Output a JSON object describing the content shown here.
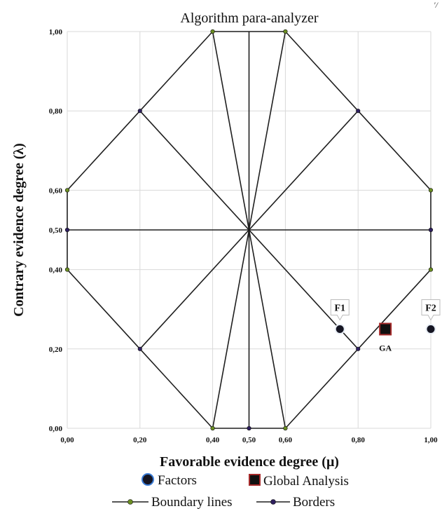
{
  "corner_text": "′/",
  "chart_data": {
    "type": "scatter",
    "title": "Algorithm para-analyzer",
    "xlabel": "Favorable evidence degree (μ)",
    "ylabel": "Contrary evidence degree (λ)",
    "xlim": [
      0,
      1
    ],
    "ylim": [
      0,
      1
    ],
    "grid": true,
    "x_ticks": [
      {
        "value": 0.0,
        "label": "0,00"
      },
      {
        "value": 0.2,
        "label": "0,20"
      },
      {
        "value": 0.4,
        "label": "0,40"
      },
      {
        "value": 0.5,
        "label": "0,50"
      },
      {
        "value": 0.6,
        "label": "0,60"
      },
      {
        "value": 0.8,
        "label": "0,80"
      },
      {
        "value": 1.0,
        "label": "1,00"
      }
    ],
    "y_ticks": [
      {
        "value": 0.0,
        "label": "0,00"
      },
      {
        "value": 0.2,
        "label": "0,20"
      },
      {
        "value": 0.4,
        "label": "0,40"
      },
      {
        "value": 0.5,
        "label": "0,50"
      },
      {
        "value": 0.6,
        "label": "0,60"
      },
      {
        "value": 0.8,
        "label": "0,80"
      },
      {
        "value": 1.0,
        "label": "1,00"
      }
    ],
    "series": [
      {
        "name": "Boundary lines",
        "color": "#6b8e23",
        "segments": [
          [
            [
              0.4,
              1.0
            ],
            [
              0.6,
              1.0
            ]
          ],
          [
            [
              0.0,
              0.6
            ],
            [
              0.0,
              0.4
            ]
          ],
          [
            [
              1.0,
              0.6
            ],
            [
              1.0,
              0.4
            ]
          ],
          [
            [
              0.4,
              0.0
            ],
            [
              0.6,
              0.0
            ]
          ],
          [
            [
              0.4,
              1.0
            ],
            [
              0.5,
              0.5
            ]
          ],
          [
            [
              0.6,
              1.0
            ],
            [
              0.5,
              0.5
            ]
          ],
          [
            [
              0.4,
              0.0
            ],
            [
              0.5,
              0.5
            ]
          ],
          [
            [
              0.6,
              0.0
            ],
            [
              0.5,
              0.5
            ]
          ]
        ],
        "points": [
          [
            0.4,
            1.0
          ],
          [
            0.6,
            1.0
          ],
          [
            0.0,
            0.6
          ],
          [
            0.0,
            0.4
          ],
          [
            1.0,
            0.6
          ],
          [
            1.0,
            0.4
          ],
          [
            0.4,
            0.0
          ],
          [
            0.6,
            0.0
          ]
        ]
      },
      {
        "name": "Borders",
        "color": "#2e1f5e",
        "segments": [
          [
            [
              0.4,
              1.0
            ],
            [
              0.2,
              0.8
            ]
          ],
          [
            [
              0.2,
              0.8
            ],
            [
              0.0,
              0.6
            ]
          ],
          [
            [
              0.6,
              1.0
            ],
            [
              0.8,
              0.8
            ]
          ],
          [
            [
              0.8,
              0.8
            ],
            [
              1.0,
              0.6
            ]
          ],
          [
            [
              0.0,
              0.4
            ],
            [
              0.2,
              0.2
            ]
          ],
          [
            [
              0.2,
              0.2
            ],
            [
              0.4,
              0.0
            ]
          ],
          [
            [
              0.6,
              0.0
            ],
            [
              0.8,
              0.2
            ]
          ],
          [
            [
              0.8,
              0.2
            ],
            [
              1.0,
              0.4
            ]
          ],
          [
            [
              0.2,
              0.8
            ],
            [
              0.8,
              0.2
            ]
          ],
          [
            [
              0.8,
              0.8
            ],
            [
              0.2,
              0.2
            ]
          ],
          [
            [
              0.0,
              0.5
            ],
            [
              1.0,
              0.5
            ]
          ],
          [
            [
              0.5,
              1.0
            ],
            [
              0.5,
              0.0
            ]
          ]
        ],
        "points": [
          [
            0.2,
            0.8
          ],
          [
            0.8,
            0.8
          ],
          [
            0.2,
            0.2
          ],
          [
            0.8,
            0.2
          ],
          [
            0.0,
            0.5
          ],
          [
            1.0,
            0.5
          ],
          [
            0.5,
            0.0
          ]
        ]
      },
      {
        "name": "Factors",
        "color": "#1a1a2e",
        "points": [
          {
            "label": "F1",
            "x": 0.75,
            "y": 0.25
          },
          {
            "label": "F2",
            "x": 1.0,
            "y": 0.25
          }
        ]
      },
      {
        "name": "Global Analysis",
        "color": "#8b0000",
        "points": [
          {
            "label": "GA",
            "x": 0.875,
            "y": 0.25
          }
        ]
      }
    ],
    "legend": [
      {
        "name": "Factors",
        "marker": "circle"
      },
      {
        "name": "Global Analysis",
        "marker": "square"
      },
      {
        "name": "Boundary lines",
        "marker": "line-dot",
        "color": "#6b8e23"
      },
      {
        "name": "Borders",
        "marker": "line-dot",
        "color": "#2e1f5e"
      }
    ],
    "legend_placement": "bottom"
  }
}
